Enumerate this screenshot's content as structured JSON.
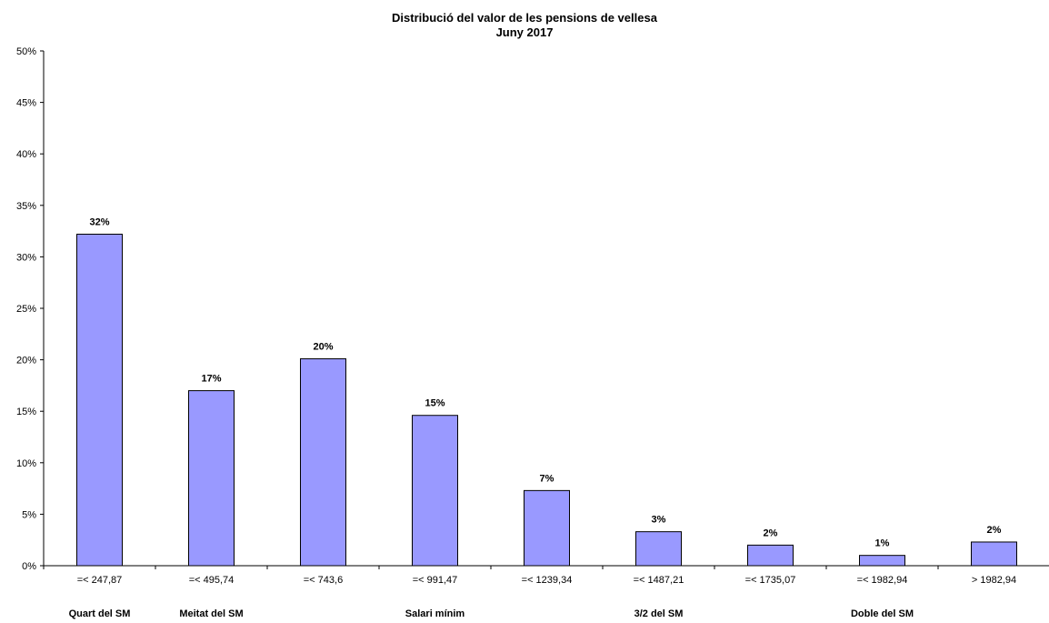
{
  "chart_data": {
    "type": "bar",
    "title": "Distribució del valor de les pensions de vellesa",
    "subtitle": "Juny 2017",
    "categories": [
      "=< 247,87",
      "=< 495,74",
      "=< 743,6",
      "=< 991,47",
      "=< 1239,34",
      "=< 1487,21",
      "=< 1735,07",
      "=< 1982,94",
      "> 1982,94"
    ],
    "values": [
      32.2,
      17.0,
      20.1,
      14.6,
      7.3,
      3.3,
      2.0,
      1.0,
      2.3
    ],
    "data_labels": [
      "32%",
      "17%",
      "20%",
      "15%",
      "7%",
      "3%",
      "2%",
      "1%",
      "2%"
    ],
    "group_labels": [
      {
        "category_index": 0,
        "text": "Quart del SM"
      },
      {
        "category_index": 1,
        "text": "Meitat del SM"
      },
      {
        "category_index": 3,
        "text": "Salari mínim"
      },
      {
        "category_index": 5,
        "text": "3/2 del SM"
      },
      {
        "category_index": 7,
        "text": "Doble del SM"
      }
    ],
    "ylim": [
      0,
      50
    ],
    "yticks": [
      0,
      5,
      10,
      15,
      20,
      25,
      30,
      35,
      40,
      45,
      50
    ],
    "ytick_labels": [
      "0%",
      "5%",
      "10%",
      "15%",
      "20%",
      "25%",
      "30%",
      "35%",
      "40%",
      "45%",
      "50%"
    ],
    "xlabel": "",
    "ylabel": "",
    "grid": false,
    "legend": "none",
    "bar_color": "#9999ff",
    "bar_stroke": "#000000"
  }
}
